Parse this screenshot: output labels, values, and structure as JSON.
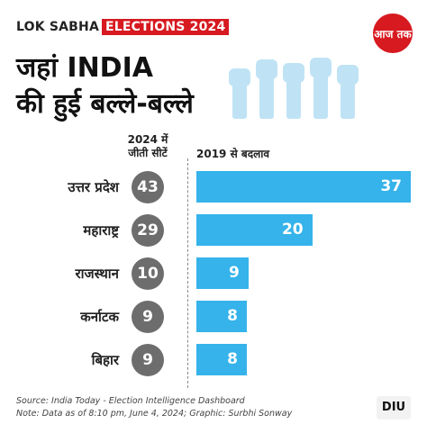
{
  "header": {
    "brand_prefix": "LOK SABHA",
    "brand_tag": "ELECTIONS 2024",
    "title_line1": "जहां INDIA",
    "title_line2": "की हुई बल्ले-बल्ले",
    "logo_text": "आज तक"
  },
  "columns": {
    "seats_header_line1": "2024 में",
    "seats_header_line2": "जीती सीटें",
    "change_header": "2019 से बदलाव"
  },
  "colors": {
    "bar": "#35b3ea",
    "circle": "#6d6d6d",
    "accent": "#d71920"
  },
  "chart_data": {
    "type": "bar",
    "categories": [
      "उत्तर प्रदेश",
      "महाराष्ट्र",
      "राजस्थान",
      "कर्नाटक",
      "बिहार"
    ],
    "series": [
      {
        "values": [
          43,
          29,
          10,
          9,
          9
        ]
      },
      {
        "values": [
          37,
          20,
          9,
          8,
          8
        ]
      }
    ],
    "title": "जहां INDIA की हुई बल्ले-बल्ले",
    "orientation": "horizontal"
  },
  "footer": {
    "source": "Source: India Today - Election Intelligence Dashboard",
    "note": "Note: Data as of 8:10 pm, June 4, 2024; Graphic: Surbhi Sonway",
    "diu": "DIU"
  }
}
